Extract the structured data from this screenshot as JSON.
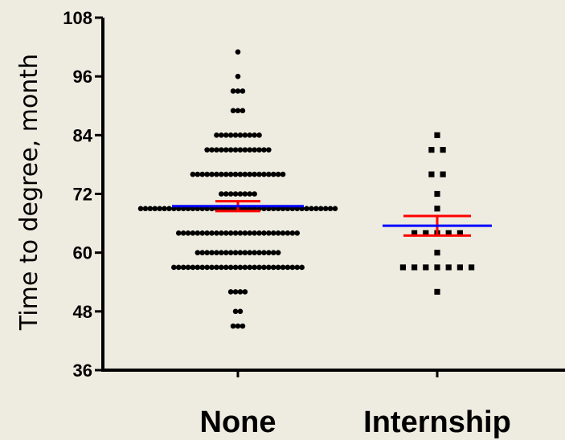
{
  "chart_data": {
    "type": "scatter",
    "title": "",
    "ylabel": "Time to degree, month",
    "xlabel": "",
    "ylim": [
      36,
      108
    ],
    "yticks": [
      36,
      48,
      60,
      72,
      84,
      96,
      108
    ],
    "categories": [
      "None",
      "Internship"
    ],
    "grid": false,
    "legend": "none",
    "colors": {
      "points": "#000000",
      "mean_line": "#0000FF",
      "error_bars": "#FF0000",
      "background": "#EEEBE0"
    },
    "series": [
      {
        "category": "None",
        "marker": "circle",
        "mean": 69.5,
        "error_low": 68.5,
        "error_high": 70.5,
        "points": [
          {
            "y": 101,
            "count": 1
          },
          {
            "y": 96,
            "count": 1
          },
          {
            "y": 93,
            "count": 3
          },
          {
            "y": 89,
            "count": 3
          },
          {
            "y": 84,
            "count": 10
          },
          {
            "y": 81,
            "count": 14
          },
          {
            "y": 76,
            "count": 20
          },
          {
            "y": 72,
            "count": 8
          },
          {
            "y": 69,
            "count": 42
          },
          {
            "y": 64,
            "count": 26
          },
          {
            "y": 60,
            "count": 18
          },
          {
            "y": 57,
            "count": 28
          },
          {
            "y": 52,
            "count": 4
          },
          {
            "y": 48,
            "count": 2
          },
          {
            "y": 45,
            "count": 3
          }
        ]
      },
      {
        "category": "Internship",
        "marker": "square",
        "mean": 65.5,
        "error_low": 63.5,
        "error_high": 67.5,
        "points": [
          {
            "y": 84,
            "count": 1
          },
          {
            "y": 81,
            "count": 2
          },
          {
            "y": 76,
            "count": 2
          },
          {
            "y": 72,
            "count": 1
          },
          {
            "y": 69,
            "count": 1
          },
          {
            "y": 64,
            "count": 5
          },
          {
            "y": 60,
            "count": 1
          },
          {
            "y": 57,
            "count": 7
          },
          {
            "y": 52,
            "count": 1
          }
        ]
      }
    ]
  }
}
